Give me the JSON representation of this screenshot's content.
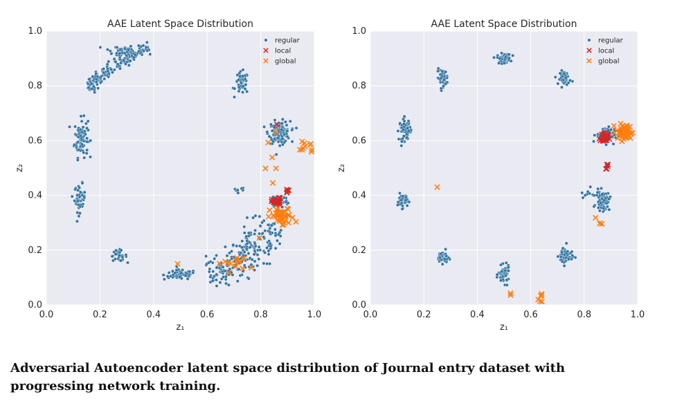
{
  "caption": "Adversarial Autoencoder latent space distribution of Journal entry dataset with progressing network training.",
  "colors": {
    "regular": "#3274a1",
    "local": "#d62728",
    "global": "#ff7f0e",
    "panel_bg": "#eaeaf2",
    "grid": "#ffffff"
  },
  "chart_data": [
    {
      "type": "scatter",
      "title": "AAE Latent Space Distribution",
      "xlabel": "z₁",
      "ylabel": "z₂",
      "xlim": [
        0.0,
        1.0
      ],
      "ylim": [
        0.0,
        1.0
      ],
      "xticks": [
        "0.0",
        "0.2",
        "0.4",
        "0.6",
        "0.8",
        "1.0"
      ],
      "yticks": [
        "0.0",
        "0.2",
        "0.4",
        "0.6",
        "0.8",
        "1.0"
      ],
      "grid": true,
      "legend_position": "top-right",
      "series": [
        {
          "name": "regular",
          "marker": "dot",
          "color": "#3274a1",
          "clusters": [
            {
              "shape": "arc",
              "cx": 0.5,
              "cy": 0.5,
              "r": 0.45,
              "a0": 105,
              "a1": 140,
              "n": 160,
              "spread": 0.012
            },
            {
              "shape": "blob",
              "cx": 0.27,
              "cy": 0.93,
              "rx": 0.06,
              "ry": 0.02,
              "n": 30
            },
            {
              "shape": "blob",
              "cx": 0.13,
              "cy": 0.61,
              "rx": 0.025,
              "ry": 0.07,
              "n": 90
            },
            {
              "shape": "blob",
              "cx": 0.125,
              "cy": 0.39,
              "rx": 0.02,
              "ry": 0.05,
              "n": 50
            },
            {
              "shape": "blob",
              "cx": 0.27,
              "cy": 0.18,
              "rx": 0.03,
              "ry": 0.02,
              "n": 30
            },
            {
              "shape": "blob",
              "cx": 0.5,
              "cy": 0.11,
              "rx": 0.06,
              "ry": 0.018,
              "n": 80
            },
            {
              "shape": "blob",
              "cx": 0.73,
              "cy": 0.81,
              "rx": 0.025,
              "ry": 0.04,
              "n": 50
            },
            {
              "shape": "blob",
              "cx": 0.87,
              "cy": 0.63,
              "rx": 0.04,
              "ry": 0.04,
              "n": 140
            },
            {
              "shape": "blob",
              "cx": 0.87,
              "cy": 0.38,
              "rx": 0.03,
              "ry": 0.025,
              "n": 70
            },
            {
              "shape": "arc",
              "cx": 0.5,
              "cy": 0.5,
              "r": 0.4,
              "a0": -75,
              "a1": -30,
              "n": 220,
              "spread": 0.035
            },
            {
              "shape": "blob",
              "cx": 0.72,
              "cy": 0.42,
              "rx": 0.02,
              "ry": 0.01,
              "n": 8
            }
          ]
        },
        {
          "name": "local",
          "marker": "x",
          "color": "#d62728",
          "clusters": [
            {
              "shape": "blob",
              "cx": 0.86,
              "cy": 0.375,
              "rx": 0.018,
              "ry": 0.015,
              "n": 25
            },
            {
              "shape": "blob",
              "cx": 0.9,
              "cy": 0.42,
              "rx": 0.01,
              "ry": 0.015,
              "n": 5
            },
            {
              "shape": "blob",
              "cx": 0.86,
              "cy": 0.66,
              "rx": 0.004,
              "ry": 0.004,
              "n": 1
            }
          ]
        },
        {
          "name": "global",
          "marker": "x",
          "color": "#ff7f0e",
          "clusters": [
            {
              "shape": "blob",
              "cx": 0.88,
              "cy": 0.32,
              "rx": 0.045,
              "ry": 0.035,
              "n": 45
            },
            {
              "shape": "blob",
              "cx": 0.97,
              "cy": 0.58,
              "rx": 0.03,
              "ry": 0.03,
              "n": 10
            },
            {
              "shape": "blob",
              "cx": 0.84,
              "cy": 0.55,
              "rx": 0.02,
              "ry": 0.08,
              "n": 6
            },
            {
              "shape": "blob",
              "cx": 0.7,
              "cy": 0.15,
              "rx": 0.06,
              "ry": 0.03,
              "n": 14
            },
            {
              "shape": "point",
              "cx": 0.49,
              "cy": 0.15
            },
            {
              "shape": "point",
              "cx": 0.795,
              "cy": 0.245
            }
          ]
        }
      ]
    },
    {
      "type": "scatter",
      "title": "AAE Latent Space Distribution",
      "xlabel": "z₁",
      "ylabel": "z₂",
      "xlim": [
        0.0,
        1.0
      ],
      "ylim": [
        0.0,
        1.0
      ],
      "xticks": [
        "0.0",
        "0.2",
        "0.4",
        "0.6",
        "0.8",
        "1.0"
      ],
      "yticks": [
        "0.0",
        "0.2",
        "0.4",
        "0.6",
        "0.8",
        "1.0"
      ],
      "grid": true,
      "legend_position": "top-right",
      "series": [
        {
          "name": "regular",
          "marker": "dot",
          "color": "#3274a1",
          "clusters": [
            {
              "shape": "blob",
              "cx": 0.5,
              "cy": 0.9,
              "rx": 0.025,
              "ry": 0.018,
              "n": 50
            },
            {
              "shape": "blob",
              "cx": 0.27,
              "cy": 0.83,
              "rx": 0.02,
              "ry": 0.03,
              "n": 50
            },
            {
              "shape": "blob",
              "cx": 0.73,
              "cy": 0.83,
              "rx": 0.02,
              "ry": 0.025,
              "n": 50
            },
            {
              "shape": "blob",
              "cx": 0.13,
              "cy": 0.64,
              "rx": 0.022,
              "ry": 0.04,
              "n": 60
            },
            {
              "shape": "blob",
              "cx": 0.12,
              "cy": 0.38,
              "rx": 0.018,
              "ry": 0.025,
              "n": 50
            },
            {
              "shape": "blob",
              "cx": 0.27,
              "cy": 0.175,
              "rx": 0.02,
              "ry": 0.022,
              "n": 50
            },
            {
              "shape": "blob",
              "cx": 0.5,
              "cy": 0.11,
              "rx": 0.02,
              "ry": 0.03,
              "n": 60
            },
            {
              "shape": "blob",
              "cx": 0.73,
              "cy": 0.18,
              "rx": 0.025,
              "ry": 0.035,
              "n": 60
            },
            {
              "shape": "blob",
              "cx": 0.87,
              "cy": 0.38,
              "rx": 0.025,
              "ry": 0.035,
              "n": 70
            },
            {
              "shape": "blob",
              "cx": 0.88,
              "cy": 0.62,
              "rx": 0.035,
              "ry": 0.03,
              "n": 80
            },
            {
              "shape": "blob",
              "cx": 0.81,
              "cy": 0.41,
              "rx": 0.02,
              "ry": 0.02,
              "n": 8
            }
          ]
        },
        {
          "name": "local",
          "marker": "x",
          "color": "#d62728",
          "clusters": [
            {
              "shape": "blob",
              "cx": 0.875,
              "cy": 0.61,
              "rx": 0.015,
              "ry": 0.02,
              "n": 30
            },
            {
              "shape": "blob",
              "cx": 0.885,
              "cy": 0.5,
              "rx": 0.004,
              "ry": 0.012,
              "n": 5
            }
          ]
        },
        {
          "name": "global",
          "marker": "x",
          "color": "#ff7f0e",
          "clusters": [
            {
              "shape": "blob",
              "cx": 0.95,
              "cy": 0.63,
              "rx": 0.03,
              "ry": 0.03,
              "n": 60
            },
            {
              "shape": "point",
              "cx": 0.25,
              "cy": 0.43
            },
            {
              "shape": "blob",
              "cx": 0.855,
              "cy": 0.3,
              "rx": 0.01,
              "ry": 0.02,
              "n": 4
            },
            {
              "shape": "blob",
              "cx": 0.53,
              "cy": 0.035,
              "rx": 0.015,
              "ry": 0.01,
              "n": 2
            },
            {
              "shape": "blob",
              "cx": 0.635,
              "cy": 0.04,
              "rx": 0.01,
              "ry": 0.03,
              "n": 6
            }
          ]
        }
      ]
    }
  ]
}
